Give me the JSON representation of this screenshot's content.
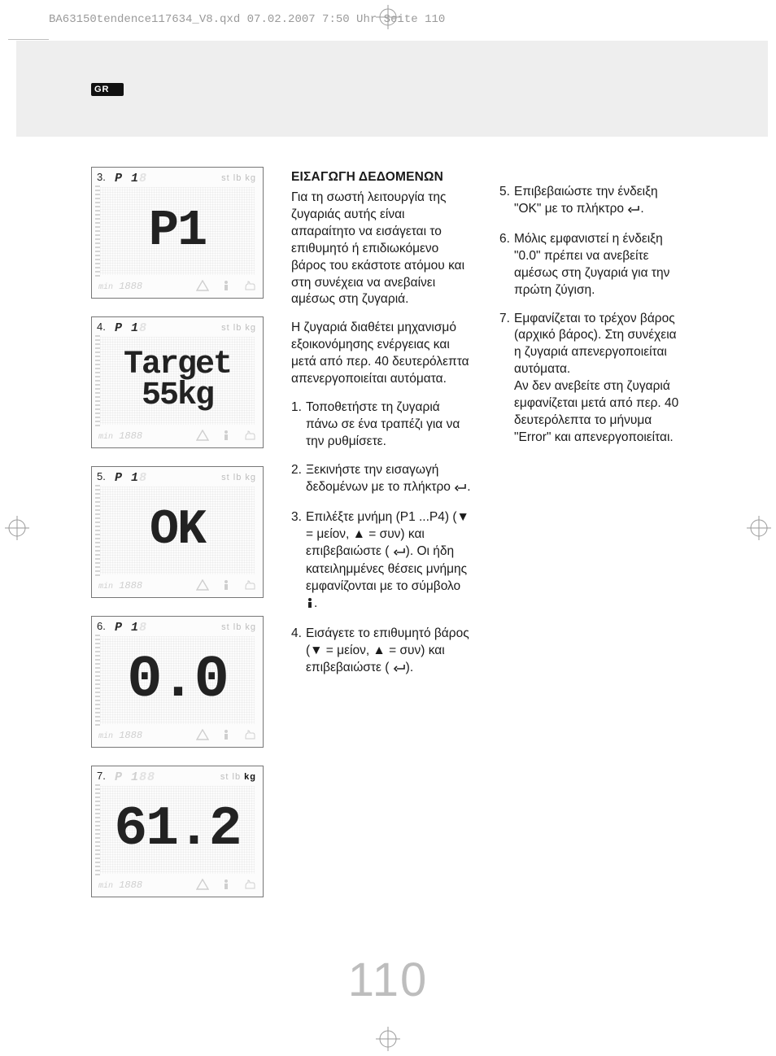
{
  "header_line": "BA63150tendence117634_V8.qxd  07.02.2007  7:50 Uhr  Seite 110",
  "language_badge": "GR",
  "page_number": "110",
  "lcd_common": {
    "ghost_888_color": "#d0d0d0",
    "min_label": "min",
    "ghost_bottom": "1888",
    "units": "st lb kg",
    "triangle_icon": "warning-triangle-icon",
    "person_icon": "person-icon",
    "hand_icon": "hand-point-icon"
  },
  "lcds": [
    {
      "num": "3.",
      "p_label": "P 1",
      "p_ghost_side": "8",
      "main": "P1",
      "main_fs": 62,
      "two_line": false,
      "unit_active": ""
    },
    {
      "num": "4.",
      "p_label": "P 1",
      "p_ghost_side": "8",
      "main_l1": "Target",
      "main_l2": "55kg",
      "main_fs": 40,
      "two_line": true,
      "unit_active": ""
    },
    {
      "num": "5.",
      "p_label": "P 1",
      "p_ghost_side": "8",
      "main": "OK",
      "main_fs": 60,
      "two_line": false,
      "unit_active": ""
    },
    {
      "num": "6.",
      "p_label": "P 1",
      "p_ghost_side": "8",
      "main": "0.0",
      "main_fs": 72,
      "two_line": false,
      "unit_active": ""
    },
    {
      "num": "7.",
      "p_label": "P 1",
      "p_ghost_side": "88",
      "p_light": true,
      "main": "61.2",
      "main_fs": 68,
      "two_line": false,
      "unit_active": "kg"
    }
  ],
  "col1": {
    "title": "ΕΙΣΑΓΩΓΗ ΔΕΔΟΜΕΝΩΝ",
    "p1": "Για τη σωστή λειτουργία της ζυγαριάς αυτής είναι απαραίτητο να εισάγεται το επιθυμητό ή επιδιωκόμενο βάρος του εκάστοτε ατόμου και στη συνέχεια να ανεβαίνει αμέσως στη ζυγαριά.",
    "p2": "Η ζυγαριά διαθέτει μηχανισμό εξοικονόμησης ενέργειας και μετά από περ. 40 δευτερόλεπτα απενεργοποιείται αυτόματα.",
    "li1": "Τοποθετήστε τη ζυγαριά πάνω σε ένα τραπέζι για να την ρυθμίσετε.",
    "li2_a": "Ξεκινήστε την εισαγωγή δεδομένων με το πλήκτρο ",
    "li2_b": ".",
    "li3_a": "Επιλέξτε μνήμη (P1 ...P4) (▼ = μείον, ▲ = συν) και επιβεβαιώστε ( ",
    "li3_b": "). Οι ήδη κατειλημμένες θέσεις μνήμης εμφανίζονται με το σύμβολο ",
    "li3_c": ".",
    "li4_a": "Εισάγετε το επιθυμητό βάρος (▼ = μείον, ▲ = συν) και επιβεβαιώστε ( ",
    "li4_b": ")."
  },
  "col2": {
    "li5_a": "Επιβεβαιώστε την ένδειξη \"OK\" με το πλήκτρο ",
    "li5_b": ".",
    "li6": "Μόλις εμφανιστεί η ένδειξη \"0.0\" πρέπει να ανεβείτε αμέσως στη ζυγαριά για την πρώτη ζύγιση.",
    "li7": "Εμφανίζεται το τρέχον βάρος (αρχικό βάρος). Στη συνέχεια η ζυγαριά απενεργοποιείται αυτόματα.\nΑν δεν ανεβείτε στη ζυγαριά εμφανίζεται μετά από περ. 40 δευτερόλεπτα το μήνυμα \"Error\" και απενεργοποιείται."
  },
  "styling": {
    "page_bg": "#ffffff",
    "band_bg": "#eeeeee",
    "badge_bg": "#111111",
    "badge_fg": "#ffffff",
    "text_color": "#1a1a1a",
    "ghost_color": "#cfcfcf",
    "pagenum_color": "#bdbdbd",
    "body_font_size": 15.5,
    "title_font_weight": "bold"
  }
}
